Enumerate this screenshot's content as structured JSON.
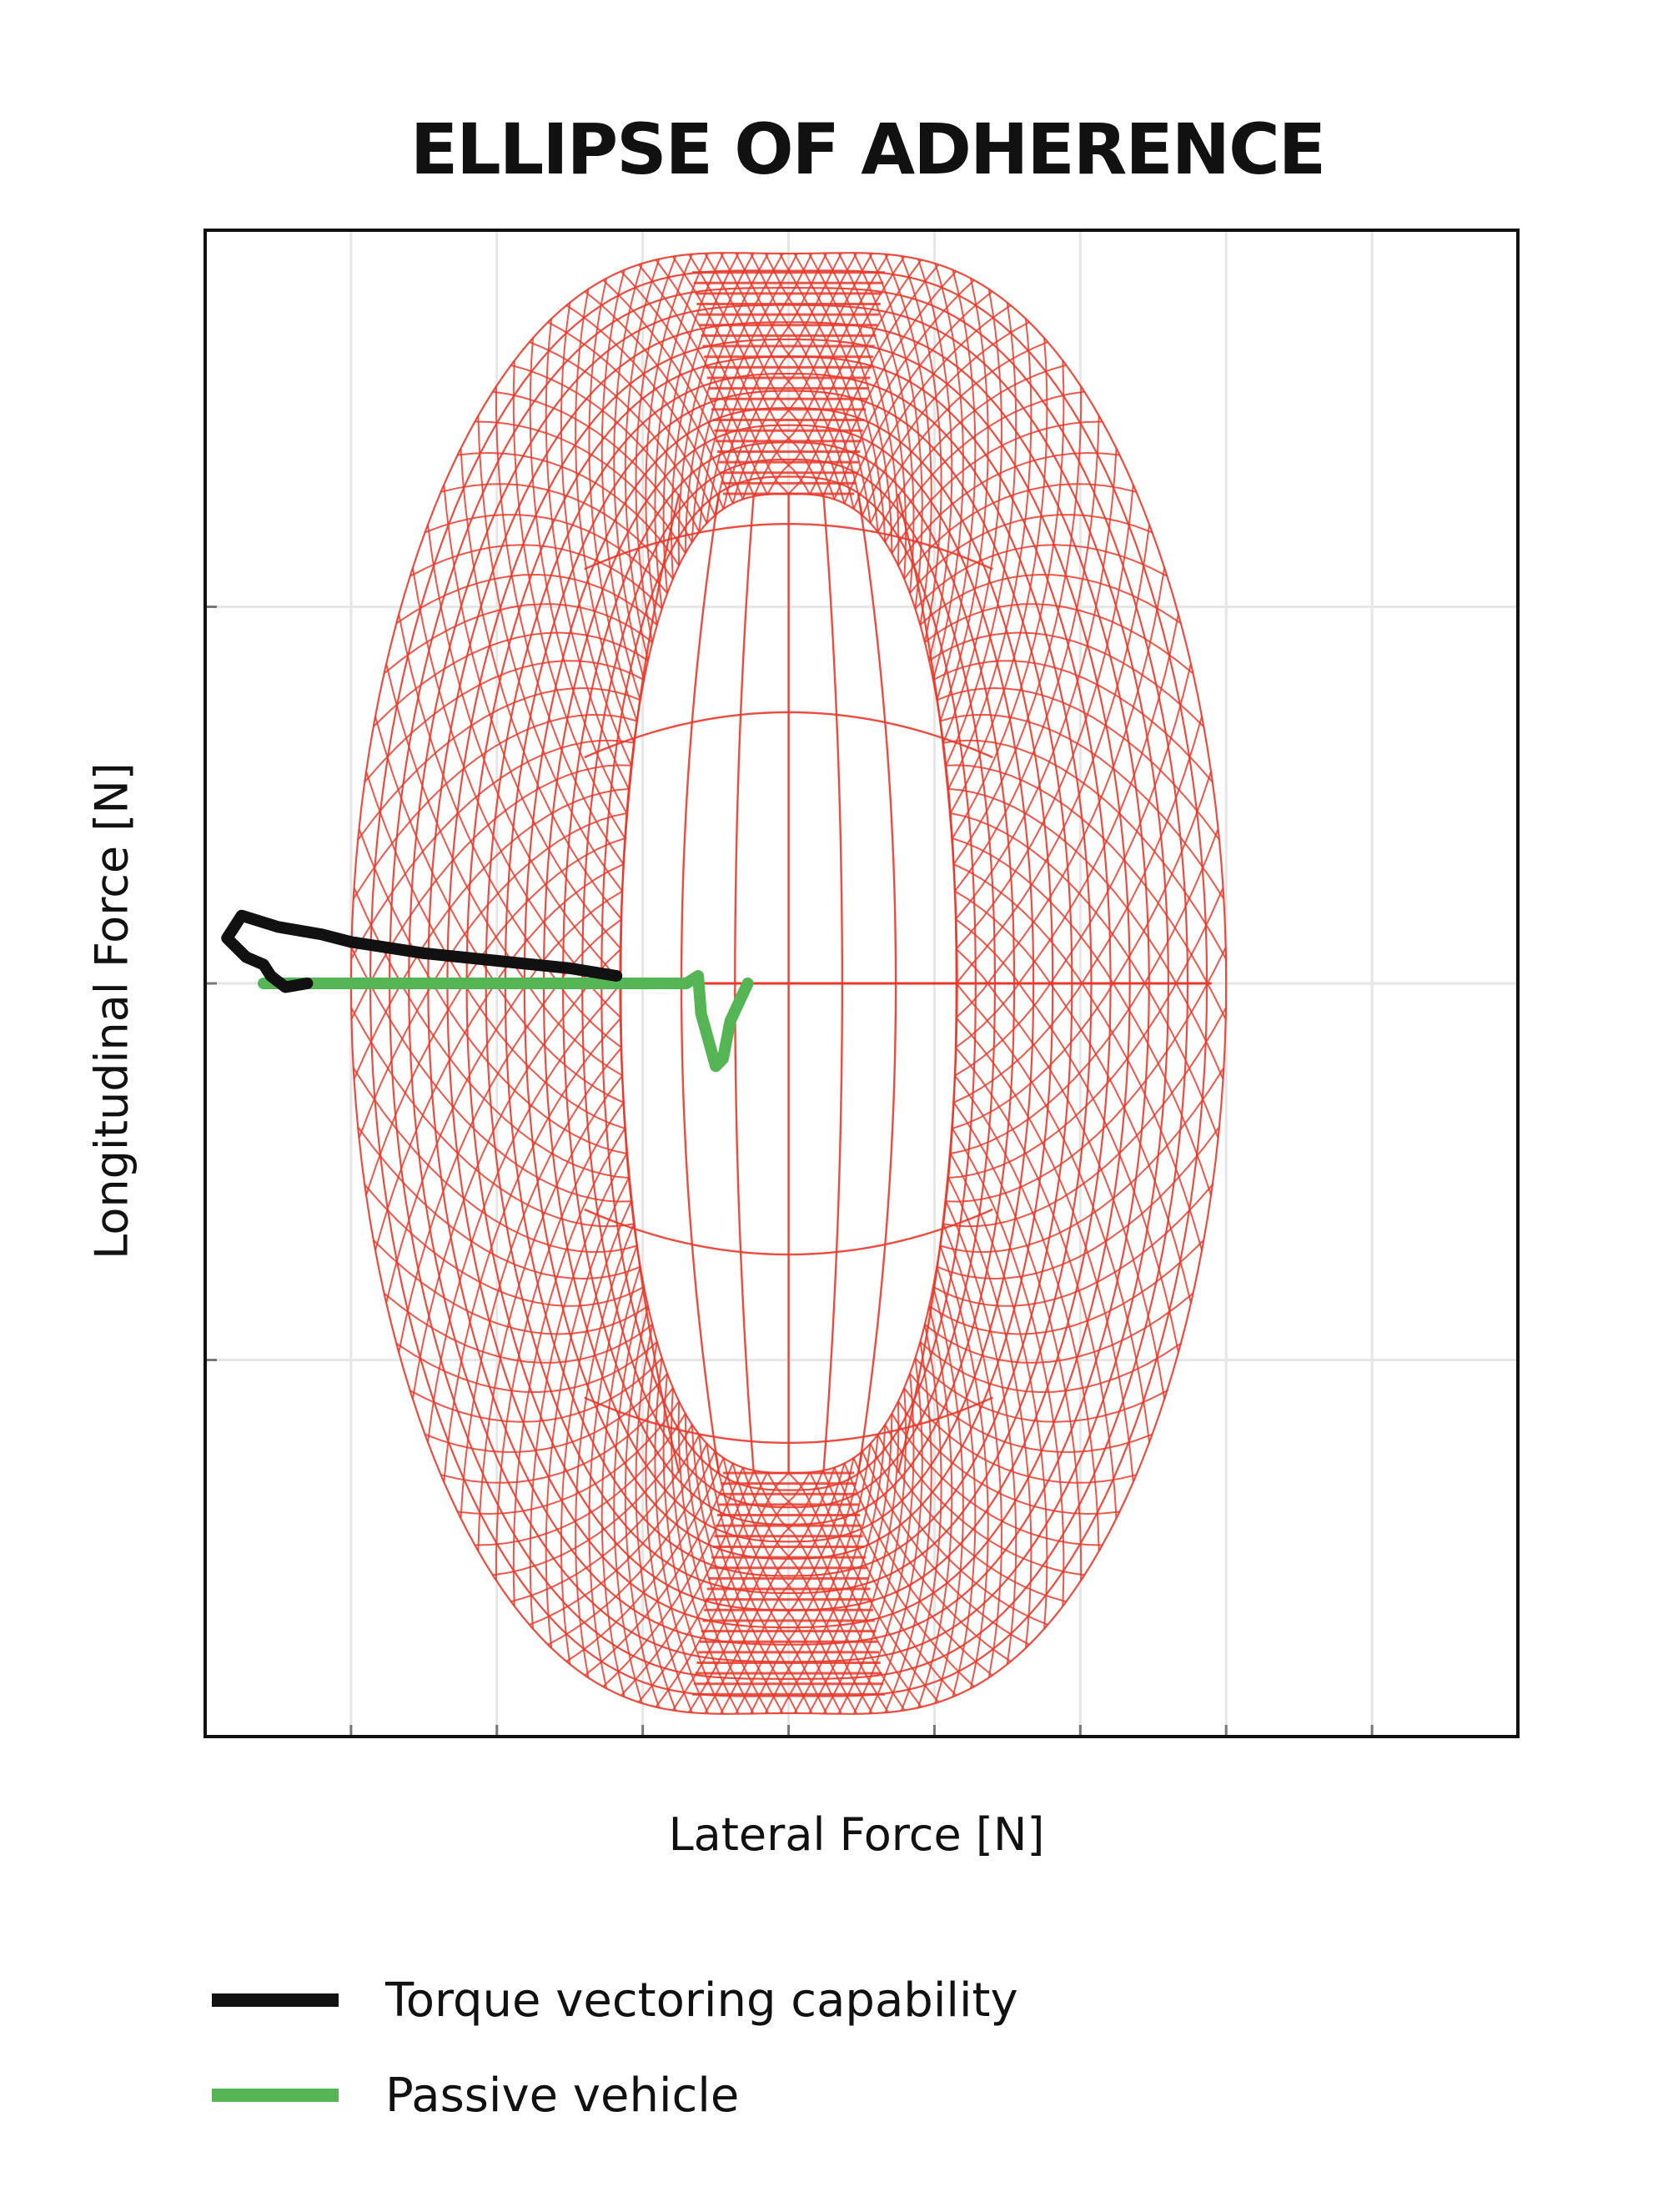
{
  "chart_data": {
    "type": "line",
    "title": "ELLIPSE OF ADHERENCE",
    "xlabel": "Lateral Force [N]",
    "ylabel": "Longitudinal Force [N]",
    "xlim": [
      -4,
      5
    ],
    "ylim": [
      -2,
      2
    ],
    "grid": true,
    "tick_labels_shown": false,
    "legend_position": "bottom-left",
    "envelope": {
      "description_color": "#e8392b",
      "style": "wireframe surface"
    },
    "series": [
      {
        "name": "Torque vectoring capability",
        "color": "#111111",
        "x": [
          -1.18,
          -1.5,
          -2.0,
          -2.5,
          -3.0,
          -3.2,
          -3.5,
          -3.75,
          -3.85,
          -3.72,
          -3.6,
          -3.55,
          -3.45,
          -3.3
        ],
        "y": [
          0.02,
          0.04,
          0.06,
          0.08,
          0.11,
          0.13,
          0.15,
          0.18,
          0.12,
          0.07,
          0.05,
          0.02,
          -0.01,
          0.0
        ]
      },
      {
        "name": "Passive vehicle",
        "color": "#55b555",
        "x": [
          -3.6,
          -3.0,
          -2.0,
          -1.0,
          -0.7,
          -0.62,
          -0.6,
          -0.5,
          -0.45,
          -0.4,
          -0.28
        ],
        "y": [
          0.0,
          0.0,
          0.0,
          0.0,
          0.0,
          0.02,
          -0.08,
          -0.22,
          -0.2,
          -0.1,
          0.0
        ]
      }
    ]
  }
}
